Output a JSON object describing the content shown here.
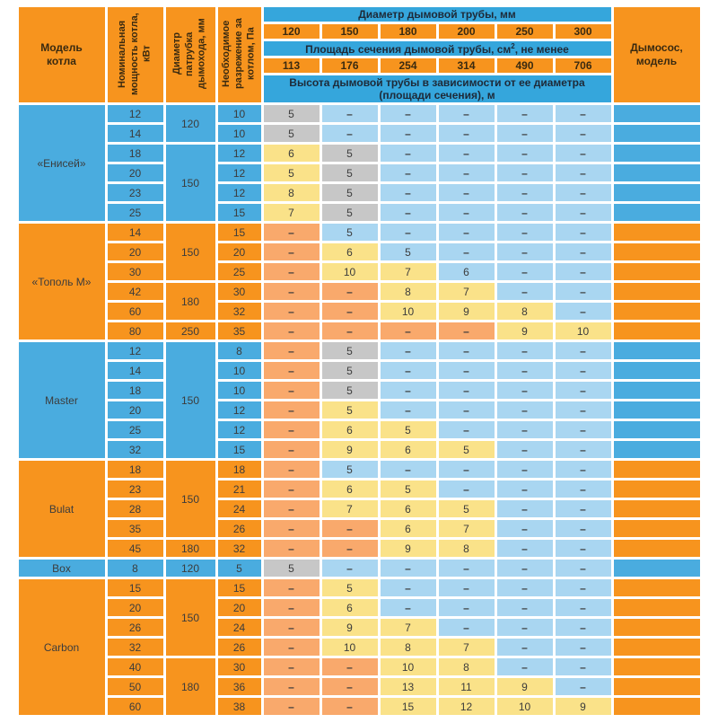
{
  "colors": {
    "orange": "#F7941E",
    "section_blue": "#4AACDF",
    "header_blue": "#35A6DC",
    "light_blue": "#A9D6F1",
    "yellow": "#FAE289",
    "gray": "#C7C7C7",
    "salmon": "#F9A96C",
    "text_dark": "#3C3C3C",
    "background": "#FFFFFF"
  },
  "header": {
    "model_col": "Модель котла",
    "power_col": "Номинальная мощность котла, кВт",
    "pipe_col": "Диаметр патрубка дымохода, мм",
    "draft_col": "Необходимое разрежение за котлом, Па",
    "exhauster_col": "Дымосос, модель",
    "diameter_title": "Диаметр дымовой трубы, мм",
    "diameters": [
      "120",
      "150",
      "180",
      "200",
      "250",
      "300"
    ],
    "area_title_pre": "Площадь сечения дымовой трубы, см",
    "area_title_sup": "2",
    "area_title_post": ", не менее",
    "areas": [
      "113",
      "176",
      "254",
      "314",
      "490",
      "706"
    ],
    "height_title": "Высота дымовой трубы в зависимости от ее диаметра (площади сечения), м"
  },
  "sections": [
    {
      "model": "«Енисей»",
      "theme": "blue",
      "rows": [
        {
          "power": "12",
          "pipe": "120",
          "pipe_span": 2,
          "draft": "10",
          "heights": [
            [
              "5",
              "g"
            ],
            [
              "–",
              "b"
            ],
            [
              "–",
              "b"
            ],
            [
              "–",
              "b"
            ],
            [
              "–",
              "b"
            ],
            [
              "–",
              "b"
            ]
          ]
        },
        {
          "power": "14",
          "pipe": null,
          "draft": "10",
          "heights": [
            [
              "5",
              "g"
            ],
            [
              "–",
              "b"
            ],
            [
              "–",
              "b"
            ],
            [
              "–",
              "b"
            ],
            [
              "–",
              "b"
            ],
            [
              "–",
              "b"
            ]
          ]
        },
        {
          "power": "18",
          "pipe": "150",
          "pipe_span": 4,
          "draft": "12",
          "heights": [
            [
              "6",
              "y"
            ],
            [
              "5",
              "g"
            ],
            [
              "–",
              "b"
            ],
            [
              "–",
              "b"
            ],
            [
              "–",
              "b"
            ],
            [
              "–",
              "b"
            ]
          ]
        },
        {
          "power": "20",
          "pipe": null,
          "draft": "12",
          "heights": [
            [
              "5",
              "y"
            ],
            [
              "5",
              "g"
            ],
            [
              "–",
              "b"
            ],
            [
              "–",
              "b"
            ],
            [
              "–",
              "b"
            ],
            [
              "–",
              "b"
            ]
          ]
        },
        {
          "power": "23",
          "pipe": null,
          "draft": "12",
          "heights": [
            [
              "8",
              "y"
            ],
            [
              "5",
              "g"
            ],
            [
              "–",
              "b"
            ],
            [
              "–",
              "b"
            ],
            [
              "–",
              "b"
            ],
            [
              "–",
              "b"
            ]
          ]
        },
        {
          "power": "25",
          "pipe": null,
          "draft": "15",
          "heights": [
            [
              "7",
              "y"
            ],
            [
              "5",
              "g"
            ],
            [
              "–",
              "b"
            ],
            [
              "–",
              "b"
            ],
            [
              "–",
              "b"
            ],
            [
              "–",
              "b"
            ]
          ]
        }
      ]
    },
    {
      "model": "«Тополь М»",
      "theme": "orange",
      "rows": [
        {
          "power": "14",
          "pipe": "150",
          "pipe_span": 3,
          "draft": "15",
          "heights": [
            [
              "–",
              "o"
            ],
            [
              "5",
              "b"
            ],
            [
              "–",
              "b"
            ],
            [
              "–",
              "b"
            ],
            [
              "–",
              "b"
            ],
            [
              "–",
              "b"
            ]
          ]
        },
        {
          "power": "20",
          "pipe": null,
          "draft": "20",
          "heights": [
            [
              "–",
              "o"
            ],
            [
              "6",
              "y"
            ],
            [
              "5",
              "b"
            ],
            [
              "–",
              "b"
            ],
            [
              "–",
              "b"
            ],
            [
              "–",
              "b"
            ]
          ]
        },
        {
          "power": "30",
          "pipe": null,
          "draft": "25",
          "heights": [
            [
              "–",
              "o"
            ],
            [
              "10",
              "y"
            ],
            [
              "7",
              "y"
            ],
            [
              "6",
              "b"
            ],
            [
              "–",
              "b"
            ],
            [
              "–",
              "b"
            ]
          ]
        },
        {
          "power": "42",
          "pipe": "180",
          "pipe_span": 2,
          "draft": "30",
          "heights": [
            [
              "–",
              "o"
            ],
            [
              "–",
              "o"
            ],
            [
              "8",
              "y"
            ],
            [
              "7",
              "y"
            ],
            [
              "–",
              "b"
            ],
            [
              "–",
              "b"
            ]
          ]
        },
        {
          "power": "60",
          "pipe": null,
          "draft": "32",
          "heights": [
            [
              "–",
              "o"
            ],
            [
              "–",
              "o"
            ],
            [
              "10",
              "y"
            ],
            [
              "9",
              "y"
            ],
            [
              "8",
              "y"
            ],
            [
              "–",
              "b"
            ]
          ]
        },
        {
          "power": "80",
          "pipe": "250",
          "pipe_span": 1,
          "draft": "35",
          "heights": [
            [
              "–",
              "o"
            ],
            [
              "–",
              "o"
            ],
            [
              "–",
              "o"
            ],
            [
              "–",
              "o"
            ],
            [
              "9",
              "y"
            ],
            [
              "10",
              "y"
            ]
          ]
        }
      ]
    },
    {
      "model": "Master",
      "theme": "blue",
      "rows": [
        {
          "power": "12",
          "pipe": "150",
          "pipe_span": 6,
          "draft": "8",
          "heights": [
            [
              "–",
              "o"
            ],
            [
              "5",
              "g"
            ],
            [
              "–",
              "b"
            ],
            [
              "–",
              "b"
            ],
            [
              "–",
              "b"
            ],
            [
              "–",
              "b"
            ]
          ]
        },
        {
          "power": "14",
          "pipe": null,
          "draft": "10",
          "heights": [
            [
              "–",
              "o"
            ],
            [
              "5",
              "g"
            ],
            [
              "–",
              "b"
            ],
            [
              "–",
              "b"
            ],
            [
              "–",
              "b"
            ],
            [
              "–",
              "b"
            ]
          ]
        },
        {
          "power": "18",
          "pipe": null,
          "draft": "10",
          "heights": [
            [
              "–",
              "o"
            ],
            [
              "5",
              "g"
            ],
            [
              "–",
              "b"
            ],
            [
              "–",
              "b"
            ],
            [
              "–",
              "b"
            ],
            [
              "–",
              "b"
            ]
          ]
        },
        {
          "power": "20",
          "pipe": null,
          "draft": "12",
          "heights": [
            [
              "–",
              "o"
            ],
            [
              "5",
              "y"
            ],
            [
              "–",
              "b"
            ],
            [
              "–",
              "b"
            ],
            [
              "–",
              "b"
            ],
            [
              "–",
              "b"
            ]
          ]
        },
        {
          "power": "25",
          "pipe": null,
          "draft": "12",
          "heights": [
            [
              "–",
              "o"
            ],
            [
              "6",
              "y"
            ],
            [
              "5",
              "y"
            ],
            [
              "–",
              "b"
            ],
            [
              "–",
              "b"
            ],
            [
              "–",
              "b"
            ]
          ]
        },
        {
          "power": "32",
          "pipe": null,
          "draft": "15",
          "heights": [
            [
              "–",
              "o"
            ],
            [
              "9",
              "y"
            ],
            [
              "6",
              "y"
            ],
            [
              "5",
              "y"
            ],
            [
              "–",
              "b"
            ],
            [
              "–",
              "b"
            ]
          ]
        }
      ]
    },
    {
      "model": "Bulat",
      "theme": "orange",
      "rows": [
        {
          "power": "18",
          "pipe": "150",
          "pipe_span": 4,
          "draft": "18",
          "heights": [
            [
              "–",
              "o"
            ],
            [
              "5",
              "b"
            ],
            [
              "–",
              "b"
            ],
            [
              "–",
              "b"
            ],
            [
              "–",
              "b"
            ],
            [
              "–",
              "b"
            ]
          ]
        },
        {
          "power": "23",
          "pipe": null,
          "draft": "21",
          "heights": [
            [
              "–",
              "o"
            ],
            [
              "6",
              "y"
            ],
            [
              "5",
              "y"
            ],
            [
              "–",
              "b"
            ],
            [
              "–",
              "b"
            ],
            [
              "–",
              "b"
            ]
          ]
        },
        {
          "power": "28",
          "pipe": null,
          "draft": "24",
          "heights": [
            [
              "–",
              "o"
            ],
            [
              "7",
              "y"
            ],
            [
              "6",
              "y"
            ],
            [
              "5",
              "y"
            ],
            [
              "–",
              "b"
            ],
            [
              "–",
              "b"
            ]
          ]
        },
        {
          "power": "35",
          "pipe": null,
          "draft": "26",
          "heights": [
            [
              "–",
              "o"
            ],
            [
              "–",
              "o"
            ],
            [
              "6",
              "y"
            ],
            [
              "7",
              "y"
            ],
            [
              "–",
              "b"
            ],
            [
              "–",
              "b"
            ]
          ]
        },
        {
          "power": "45",
          "pipe": "180",
          "pipe_span": 1,
          "draft": "32",
          "heights": [
            [
              "–",
              "o"
            ],
            [
              "–",
              "o"
            ],
            [
              "9",
              "y"
            ],
            [
              "8",
              "y"
            ],
            [
              "–",
              "b"
            ],
            [
              "–",
              "b"
            ]
          ]
        }
      ]
    },
    {
      "model": "Box",
      "theme": "blue",
      "rows": [
        {
          "power": "8",
          "pipe": "120",
          "pipe_span": 1,
          "draft": "5",
          "heights": [
            [
              "5",
              "g"
            ],
            [
              "–",
              "b"
            ],
            [
              "–",
              "b"
            ],
            [
              "–",
              "b"
            ],
            [
              "–",
              "b"
            ],
            [
              "–",
              "b"
            ]
          ]
        }
      ]
    },
    {
      "model": "Carbon",
      "theme": "orange",
      "rows": [
        {
          "power": "15",
          "pipe": "150",
          "pipe_span": 4,
          "draft": "15",
          "heights": [
            [
              "–",
              "o"
            ],
            [
              "5",
              "y"
            ],
            [
              "–",
              "b"
            ],
            [
              "–",
              "b"
            ],
            [
              "–",
              "b"
            ],
            [
              "–",
              "b"
            ]
          ]
        },
        {
          "power": "20",
          "pipe": null,
          "draft": "20",
          "heights": [
            [
              "–",
              "o"
            ],
            [
              "6",
              "y"
            ],
            [
              "–",
              "b"
            ],
            [
              "–",
              "b"
            ],
            [
              "–",
              "b"
            ],
            [
              "–",
              "b"
            ]
          ]
        },
        {
          "power": "26",
          "pipe": null,
          "draft": "24",
          "heights": [
            [
              "–",
              "o"
            ],
            [
              "9",
              "y"
            ],
            [
              "7",
              "y"
            ],
            [
              "–",
              "b"
            ],
            [
              "–",
              "b"
            ],
            [
              "–",
              "b"
            ]
          ]
        },
        {
          "power": "32",
          "pipe": null,
          "draft": "26",
          "heights": [
            [
              "–",
              "o"
            ],
            [
              "10",
              "y"
            ],
            [
              "8",
              "y"
            ],
            [
              "7",
              "y"
            ],
            [
              "–",
              "b"
            ],
            [
              "–",
              "b"
            ]
          ]
        },
        {
          "power": "40",
          "pipe": "180",
          "pipe_span": 3,
          "draft": "30",
          "heights": [
            [
              "–",
              "o"
            ],
            [
              "–",
              "o"
            ],
            [
              "10",
              "y"
            ],
            [
              "8",
              "y"
            ],
            [
              "–",
              "b"
            ],
            [
              "–",
              "b"
            ]
          ]
        },
        {
          "power": "50",
          "pipe": null,
          "draft": "36",
          "heights": [
            [
              "–",
              "o"
            ],
            [
              "–",
              "o"
            ],
            [
              "13",
              "y"
            ],
            [
              "11",
              "y"
            ],
            [
              "9",
              "y"
            ],
            [
              "–",
              "b"
            ]
          ]
        },
        {
          "power": "60",
          "pipe": null,
          "draft": "38",
          "heights": [
            [
              "–",
              "o"
            ],
            [
              "–",
              "o"
            ],
            [
              "15",
              "y"
            ],
            [
              "12",
              "y"
            ],
            [
              "10",
              "y"
            ],
            [
              "9",
              "y"
            ]
          ]
        }
      ]
    }
  ]
}
